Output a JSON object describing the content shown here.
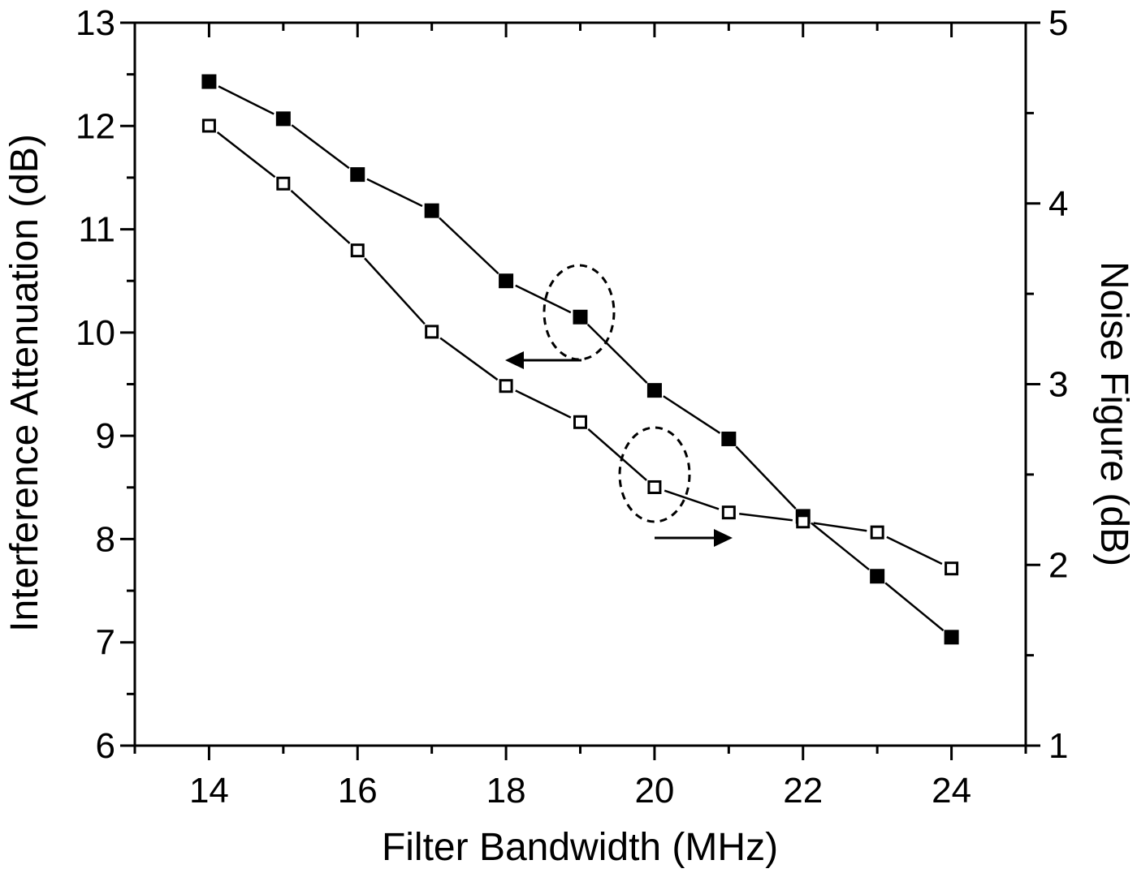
{
  "chart_data": {
    "type": "line",
    "title": "",
    "xlabel": "Filter Bandwidth (MHz)",
    "ylabel": "Interference Attenuation (dB)",
    "y2label": "Noise Figure (dB)",
    "xlim": [
      13,
      25
    ],
    "ylim": [
      6,
      13
    ],
    "y2lim": [
      1,
      5
    ],
    "x_ticks": [
      14,
      16,
      18,
      20,
      22,
      24
    ],
    "y_ticks": [
      6,
      7,
      8,
      9,
      10,
      11,
      12,
      13
    ],
    "y2_ticks": [
      1,
      2,
      3,
      4,
      5
    ],
    "grid": false,
    "legend": "none (series identified by dashed ellipses with arrows pointing to their axes)",
    "x": [
      14,
      15,
      16,
      17,
      18,
      19,
      20,
      21,
      22,
      23,
      24
    ],
    "series": [
      {
        "name": "Interference Attenuation",
        "axis": "left",
        "marker": "filled-square",
        "values": [
          12.43,
          12.07,
          11.53,
          11.18,
          10.5,
          10.15,
          9.44,
          8.97,
          8.22,
          7.64,
          7.05
        ]
      },
      {
        "name": "Noise Figure",
        "axis": "right",
        "marker": "open-square",
        "values": [
          4.43,
          4.11,
          3.74,
          3.29,
          2.99,
          2.79,
          2.43,
          2.29,
          2.24,
          2.18,
          1.98
        ]
      }
    ],
    "annotations": [
      {
        "type": "ellipse-arrow",
        "target_series": "Interference Attenuation",
        "at_x": 19,
        "arrow_direction": "left"
      },
      {
        "type": "ellipse-arrow",
        "target_series": "Noise Figure",
        "at_x": 20,
        "arrow_direction": "right"
      }
    ]
  },
  "colors": {
    "line": "#000000",
    "background": "#ffffff"
  }
}
